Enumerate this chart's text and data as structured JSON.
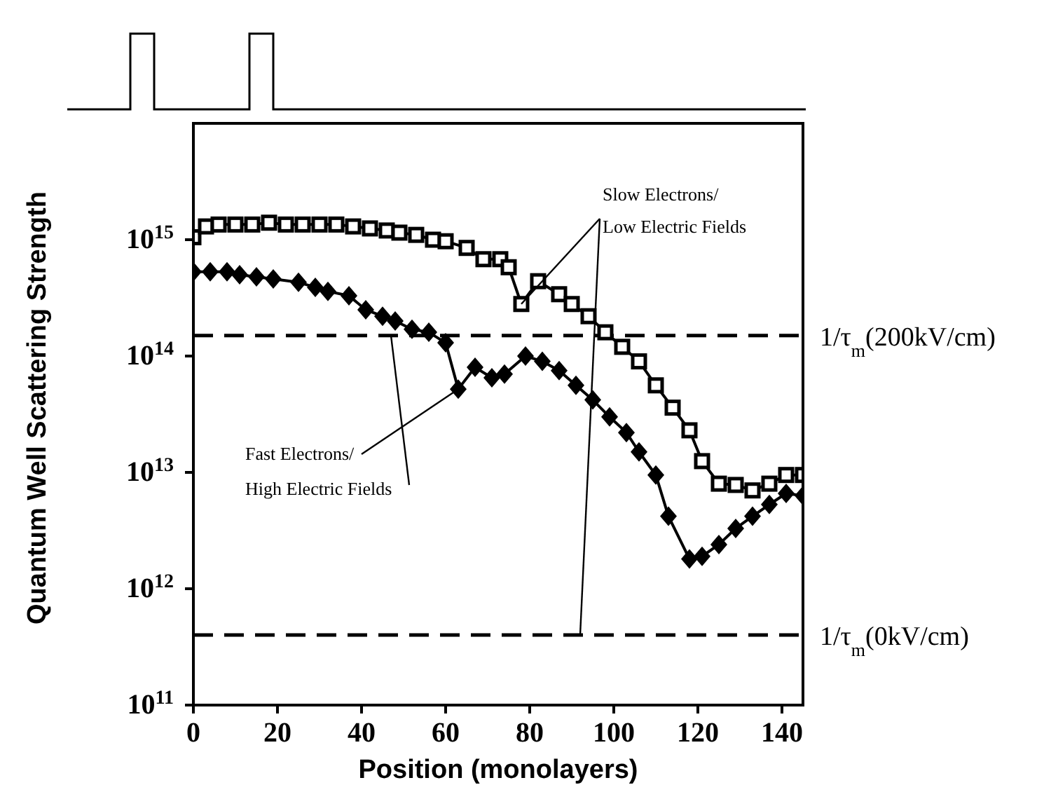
{
  "chart_data": {
    "type": "line",
    "xlabel": "Position (monolayers)",
    "ylabel": "Quantum Well Scattering Strength",
    "log": "y",
    "xlim": [
      0,
      145
    ],
    "xticks": [
      0,
      20,
      40,
      60,
      80,
      100,
      120,
      140
    ],
    "ylim": [
      100000000000.0,
      1e+16
    ],
    "yticks": [
      {
        "value": 100000000000.0,
        "label": "10$^{11}$"
      },
      {
        "value": 1000000000000.0,
        "label": "10$^{12}$"
      },
      {
        "value": 10000000000000.0,
        "label": "10$^{13}$"
      },
      {
        "value": 100000000000000.0,
        "label": "10$^{14}$"
      },
      {
        "value": 1000000000000000.0,
        "label": "10$^{15}$"
      }
    ],
    "grid": false,
    "legend": false,
    "series": [
      {
        "color": "#000000",
        "marker": "square",
        "x": [
          0,
          3,
          6,
          10,
          14,
          18,
          22,
          26,
          30,
          34,
          38,
          42,
          46,
          49,
          53,
          57,
          60,
          65,
          69,
          73,
          75,
          78,
          82,
          87,
          90,
          94,
          98,
          102,
          106,
          110,
          114,
          118,
          121,
          125,
          129,
          133,
          137,
          141,
          145
        ],
        "values": [
          1050000000000000.0,
          1300000000000000.0,
          1350000000000000.0,
          1350000000000000.0,
          1350000000000000.0,
          1400000000000000.0,
          1350000000000000.0,
          1350000000000000.0,
          1350000000000000.0,
          1350000000000000.0,
          1300000000000000.0,
          1250000000000000.0,
          1200000000000000.0,
          1150000000000000.0,
          1100000000000000.0,
          1000000000000000.0,
          970000000000000.0,
          850000000000000.0,
          680000000000000.0,
          680000000000000.0,
          580000000000000.0,
          280000000000000.0,
          440000000000000.0,
          340000000000000.0,
          280000000000000.0,
          220000000000000.0,
          160000000000000.0,
          120000000000000.0,
          90000000000000.0,
          56000000000000.0,
          36000000000000.0,
          23000000000000.0,
          12500000000000.0,
          8000000000000.0,
          7800000000000.0,
          7000000000000.0,
          8000000000000.0,
          9500000000000.0,
          9500000000000.0
        ]
      },
      {
        "color": "#000000",
        "marker": "diamond",
        "x": [
          0,
          4,
          8,
          11,
          15,
          19,
          25,
          29,
          32,
          37,
          41,
          45,
          48,
          52,
          56,
          60,
          63,
          67,
          71,
          74,
          79,
          83,
          87,
          91,
          95,
          99,
          103,
          106,
          110,
          113,
          118,
          121,
          125,
          129,
          133,
          137,
          141,
          145
        ],
        "values": [
          530000000000000.0,
          530000000000000.0,
          530000000000000.0,
          500000000000000.0,
          480000000000000.0,
          460000000000000.0,
          430000000000000.0,
          390000000000000.0,
          360000000000000.0,
          330000000000000.0,
          250000000000000.0,
          220000000000000.0,
          200000000000000.0,
          170000000000000.0,
          160000000000000.0,
          130000000000000.0,
          52000000000000.0,
          80000000000000.0,
          65000000000000.0,
          70000000000000.0,
          100000000000000.0,
          90000000000000.0,
          75000000000000.0,
          56000000000000.0,
          42000000000000.0,
          30000000000000.0,
          22000000000000.0,
          15000000000000.0,
          9500000000000.0,
          4200000000000.0,
          1800000000000.0,
          1900000000000.0,
          2400000000000.0,
          3300000000000.0,
          4200000000000.0,
          5300000000000.0,
          6600000000000.0,
          6300000000000.0
        ]
      }
    ],
    "ref_lines": [
      {
        "axis": "y",
        "value": 150000000000000.0,
        "label": "1/τ$_{m}$(200kV/cm)",
        "line_style": "dashed",
        "color": "#000000"
      },
      {
        "axis": "y",
        "value": 400000000000.0,
        "label": "1/τ$_{m}$(0kV/cm)",
        "line_style": "dashed",
        "color": "#000000"
      }
    ],
    "annotations": [
      {
        "text": "Slow Electrons/",
        "x": 78,
        "y": 280000000000000.0
      },
      {
        "text": "Low Electric Fields",
        "x": 92,
        "y": 400000000000.0
      },
      {
        "text": "Fast Electrons/",
        "x": 63,
        "y": 52000000000000.0
      },
      {
        "text": "High Electric Fields",
        "x": 47,
        "y": 150000000000000.0
      }
    ]
  }
}
